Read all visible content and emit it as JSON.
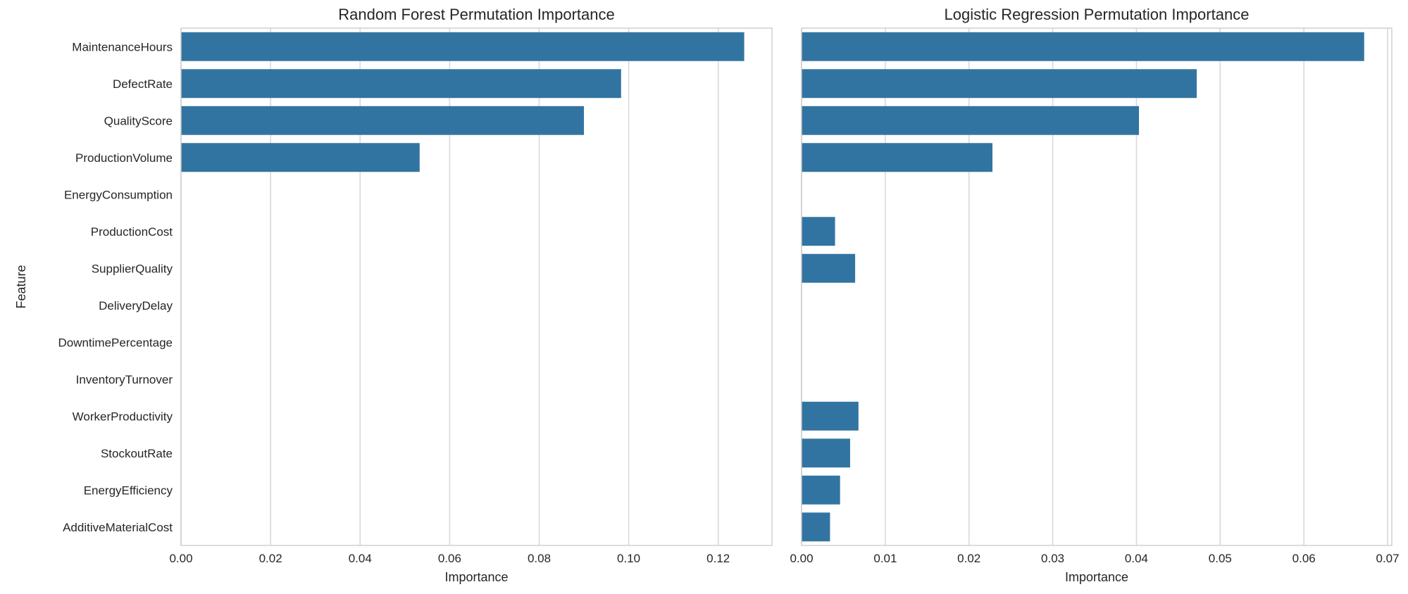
{
  "chart_data": [
    {
      "type": "bar",
      "orientation": "horizontal",
      "title": "Random Forest Permutation Importance",
      "xlabel": "Importance",
      "ylabel": "Feature",
      "xlim": [
        0,
        0.132
      ],
      "xticks": [
        "0.00",
        "0.02",
        "0.04",
        "0.06",
        "0.08",
        "0.10",
        "0.12"
      ],
      "grid": "vertical",
      "color": "#3274a1",
      "categories": [
        "MaintenanceHours",
        "DefectRate",
        "QualityScore",
        "ProductionVolume",
        "EnergyConsumption",
        "ProductionCost",
        "SupplierQuality",
        "DeliveryDelay",
        "DowntimePercentage",
        "InventoryTurnover",
        "WorkerProductivity",
        "StockoutRate",
        "EnergyEfficiency",
        "AdditiveMaterialCost"
      ],
      "values": [
        0.1258,
        0.0983,
        0.09,
        0.0533,
        0,
        0,
        0,
        0,
        0,
        0,
        0,
        0,
        0,
        0
      ]
    },
    {
      "type": "bar",
      "orientation": "horizontal",
      "title": "Logistic Regression Permutation Importance",
      "xlabel": "Importance",
      "ylabel": "",
      "xlim": [
        0,
        0.0705
      ],
      "xticks": [
        "0.00",
        "0.01",
        "0.02",
        "0.03",
        "0.04",
        "0.05",
        "0.06",
        "0.07"
      ],
      "grid": "vertical",
      "color": "#3274a1",
      "categories": [
        "MaintenanceHours",
        "DefectRate",
        "QualityScore",
        "ProductionVolume",
        "EnergyConsumption",
        "ProductionCost",
        "SupplierQuality",
        "DeliveryDelay",
        "DowntimePercentage",
        "InventoryTurnover",
        "WorkerProductivity",
        "StockoutRate",
        "EnergyEfficiency",
        "AdditiveMaterialCost"
      ],
      "values": [
        0.0672,
        0.0472,
        0.0403,
        0.0228,
        0,
        0.004,
        0.0064,
        0,
        0,
        0,
        0.0068,
        0.0058,
        0.0046,
        0.0034
      ]
    }
  ]
}
